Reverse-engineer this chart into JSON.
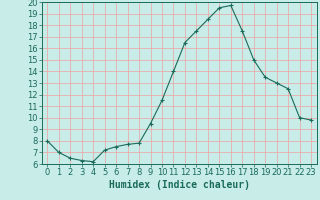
{
  "x": [
    0,
    1,
    2,
    3,
    4,
    5,
    6,
    7,
    8,
    9,
    10,
    11,
    12,
    13,
    14,
    15,
    16,
    17,
    18,
    19,
    20,
    21,
    22,
    23
  ],
  "y": [
    8.0,
    7.0,
    6.5,
    6.3,
    6.2,
    7.2,
    7.5,
    7.7,
    7.8,
    9.5,
    11.5,
    14.0,
    16.5,
    17.5,
    18.5,
    19.5,
    19.7,
    17.5,
    15.0,
    13.5,
    13.0,
    12.5,
    10.0,
    9.8
  ],
  "line_color": "#1a6b5a",
  "marker": "+",
  "bg_color": "#c8ece8",
  "grid_color": "#f0a0a0",
  "axis_color": "#1a6b5a",
  "xlabel": "Humidex (Indice chaleur)",
  "ylim": [
    6,
    20
  ],
  "xlim": [
    -0.5,
    23.5
  ],
  "yticks": [
    6,
    7,
    8,
    9,
    10,
    11,
    12,
    13,
    14,
    15,
    16,
    17,
    18,
    19,
    20
  ],
  "xticks": [
    0,
    1,
    2,
    3,
    4,
    5,
    6,
    7,
    8,
    9,
    10,
    11,
    12,
    13,
    14,
    15,
    16,
    17,
    18,
    19,
    20,
    21,
    22,
    23
  ],
  "font_size": 6,
  "label_fontsize": 7
}
